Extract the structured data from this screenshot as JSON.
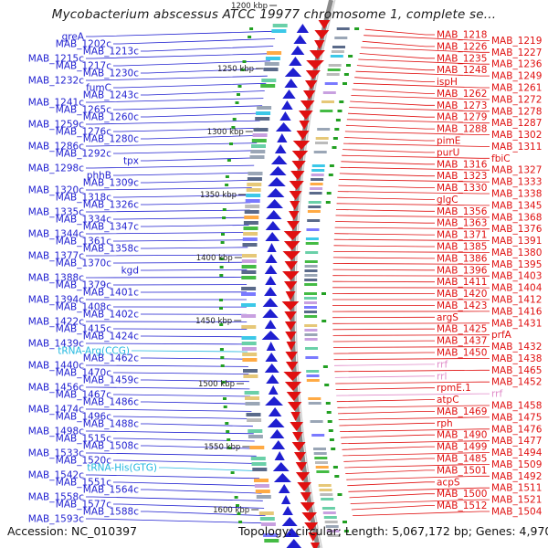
{
  "title": "Mycobacterium abscessus ATCC 19977 chromosome 1, complete se...",
  "footer": {
    "accession": "Accession: NC_010397",
    "summary": "Topology: circular; Length: 5,067,172 bp; Genes: 4,970"
  },
  "colors": {
    "reverse_strand": "#1f1fd0",
    "forward_strand": "#e01010",
    "rna": "#22b8e0",
    "pseudo": "#e08ac8",
    "backbone": "#8a8a8a",
    "cds_ring_green": "#22a022"
  },
  "scale_ticks": [
    "1200 kbp",
    "1250 kbp",
    "1300 kbp",
    "1350 kbp",
    "1400 kbp",
    "1450 kbp",
    "1500 kbp",
    "1550 kbp",
    "1600 kbp"
  ],
  "left_labels": [
    {
      "text": "greA",
      "kind": "reverse"
    },
    {
      "text": "MAB_1202c",
      "kind": "reverse"
    },
    {
      "text": "MAB_1213c",
      "kind": "reverse"
    },
    {
      "text": "MAB_1215c",
      "kind": "reverse"
    },
    {
      "text": "MAB_1217c",
      "kind": "reverse"
    },
    {
      "text": "MAB_1230c",
      "kind": "reverse"
    },
    {
      "text": "MAB_1232c",
      "kind": "reverse"
    },
    {
      "text": "fumC",
      "kind": "reverse"
    },
    {
      "text": "MAB_1243c",
      "kind": "reverse"
    },
    {
      "text": "MAB_1241c",
      "kind": "reverse"
    },
    {
      "text": "MAB_1265c",
      "kind": "reverse"
    },
    {
      "text": "MAB_1260c",
      "kind": "reverse"
    },
    {
      "text": "MAB_1259c",
      "kind": "reverse"
    },
    {
      "text": "MAB_1276c",
      "kind": "reverse"
    },
    {
      "text": "MAB_1280c",
      "kind": "reverse"
    },
    {
      "text": "MAB_1286c",
      "kind": "reverse"
    },
    {
      "text": "MAB_1292c",
      "kind": "reverse"
    },
    {
      "text": "tpx",
      "kind": "reverse"
    },
    {
      "text": "MAB_1298c",
      "kind": "reverse"
    },
    {
      "text": "phhB",
      "kind": "reverse"
    },
    {
      "text": "MAB_1309c",
      "kind": "reverse"
    },
    {
      "text": "MAB_1320c",
      "kind": "reverse"
    },
    {
      "text": "MAB_1318c",
      "kind": "reverse"
    },
    {
      "text": "MAB_1326c",
      "kind": "reverse"
    },
    {
      "text": "MAB_1335c",
      "kind": "reverse"
    },
    {
      "text": "MAB_1334c",
      "kind": "reverse"
    },
    {
      "text": "MAB_1347c",
      "kind": "reverse"
    },
    {
      "text": "MAB_1344c",
      "kind": "reverse"
    },
    {
      "text": "MAB_1361c",
      "kind": "reverse"
    },
    {
      "text": "MAB_1358c",
      "kind": "reverse"
    },
    {
      "text": "MAB_1377c",
      "kind": "reverse"
    },
    {
      "text": "MAB_1370c",
      "kind": "reverse"
    },
    {
      "text": "kgd",
      "kind": "reverse"
    },
    {
      "text": "MAB_1388c",
      "kind": "reverse"
    },
    {
      "text": "MAB_1379c",
      "kind": "reverse"
    },
    {
      "text": "MAB_1401c",
      "kind": "reverse"
    },
    {
      "text": "MAB_1394c",
      "kind": "reverse"
    },
    {
      "text": "MAB_1408c",
      "kind": "reverse"
    },
    {
      "text": "MAB_1402c",
      "kind": "reverse"
    },
    {
      "text": "MAB_1422c",
      "kind": "reverse"
    },
    {
      "text": "MAB_1415c",
      "kind": "reverse"
    },
    {
      "text": "MAB_1424c",
      "kind": "reverse"
    },
    {
      "text": "MAB_1439c",
      "kind": "reverse"
    },
    {
      "text": "tRNA-Arg(CCG)",
      "kind": "rna"
    },
    {
      "text": "MAB_1462c",
      "kind": "reverse"
    },
    {
      "text": "MAB_1440c",
      "kind": "reverse"
    },
    {
      "text": "MAB_1470c",
      "kind": "reverse"
    },
    {
      "text": "MAB_1459c",
      "kind": "reverse"
    },
    {
      "text": "MAB_1456c",
      "kind": "reverse"
    },
    {
      "text": "MAB_1467c",
      "kind": "reverse"
    },
    {
      "text": "MAB_1486c",
      "kind": "reverse"
    },
    {
      "text": "MAB_1474c",
      "kind": "reverse"
    },
    {
      "text": "MAB_1496c",
      "kind": "reverse"
    },
    {
      "text": "MAB_1488c",
      "kind": "reverse"
    },
    {
      "text": "MAB_1498c",
      "kind": "reverse"
    },
    {
      "text": "MAB_1515c",
      "kind": "reverse"
    },
    {
      "text": "MAB_1508c",
      "kind": "reverse"
    },
    {
      "text": "MAB_1533c",
      "kind": "reverse"
    },
    {
      "text": "MAB_1520c",
      "kind": "reverse"
    },
    {
      "text": "tRNA-His(GTG)",
      "kind": "rna"
    },
    {
      "text": "MAB_1542c",
      "kind": "reverse"
    },
    {
      "text": "MAB_1551c",
      "kind": "reverse"
    },
    {
      "text": "MAB_1564c",
      "kind": "reverse"
    },
    {
      "text": "MAB_1558c",
      "kind": "reverse"
    },
    {
      "text": "MAB_1577c",
      "kind": "reverse"
    },
    {
      "text": "MAB_1588c",
      "kind": "reverse"
    },
    {
      "text": "MAB_1593c",
      "kind": "reverse"
    }
  ],
  "right_labels": [
    {
      "text": "MAB_1218",
      "kind": "forward"
    },
    {
      "text": "MAB_1219",
      "kind": "forward"
    },
    {
      "text": "MAB_1226",
      "kind": "forward"
    },
    {
      "text": "MAB_1227",
      "kind": "forward"
    },
    {
      "text": "MAB_1235",
      "kind": "forward"
    },
    {
      "text": "MAB_1236",
      "kind": "forward"
    },
    {
      "text": "MAB_1248",
      "kind": "forward"
    },
    {
      "text": "MAB_1249",
      "kind": "forward"
    },
    {
      "text": "ispH",
      "kind": "forward"
    },
    {
      "text": "MAB_1261",
      "kind": "forward"
    },
    {
      "text": "MAB_1262",
      "kind": "forward"
    },
    {
      "text": "MAB_1272",
      "kind": "forward"
    },
    {
      "text": "MAB_1273",
      "kind": "forward"
    },
    {
      "text": "MAB_1278",
      "kind": "forward"
    },
    {
      "text": "MAB_1279",
      "kind": "forward"
    },
    {
      "text": "MAB_1287",
      "kind": "forward"
    },
    {
      "text": "MAB_1288",
      "kind": "forward"
    },
    {
      "text": "MAB_1302",
      "kind": "forward"
    },
    {
      "text": "pimE",
      "kind": "forward"
    },
    {
      "text": "MAB_1311",
      "kind": "forward"
    },
    {
      "text": "purU",
      "kind": "forward"
    },
    {
      "text": "fbiC",
      "kind": "forward"
    },
    {
      "text": "MAB_1316",
      "kind": "forward"
    },
    {
      "text": "MAB_1327",
      "kind": "forward"
    },
    {
      "text": "MAB_1323",
      "kind": "forward"
    },
    {
      "text": "MAB_1333",
      "kind": "forward"
    },
    {
      "text": "MAB_1330",
      "kind": "forward"
    },
    {
      "text": "MAB_1338",
      "kind": "forward"
    },
    {
      "text": "glgC",
      "kind": "forward"
    },
    {
      "text": "MAB_1345",
      "kind": "forward"
    },
    {
      "text": "MAB_1356",
      "kind": "forward"
    },
    {
      "text": "MAB_1368",
      "kind": "forward"
    },
    {
      "text": "MAB_1363",
      "kind": "forward"
    },
    {
      "text": "MAB_1376",
      "kind": "forward"
    },
    {
      "text": "MAB_1371",
      "kind": "forward"
    },
    {
      "text": "MAB_1391",
      "kind": "forward"
    },
    {
      "text": "MAB_1385",
      "kind": "forward"
    },
    {
      "text": "MAB_1380",
      "kind": "forward"
    },
    {
      "text": "MAB_1386",
      "kind": "forward"
    },
    {
      "text": "MAB_1395",
      "kind": "forward"
    },
    {
      "text": "MAB_1396",
      "kind": "forward"
    },
    {
      "text": "MAB_1403",
      "kind": "forward"
    },
    {
      "text": "MAB_1411",
      "kind": "forward"
    },
    {
      "text": "MAB_1404",
      "kind": "forward"
    },
    {
      "text": "MAB_1420",
      "kind": "forward"
    },
    {
      "text": "MAB_1412",
      "kind": "forward"
    },
    {
      "text": "MAB_1423",
      "kind": "forward"
    },
    {
      "text": "MAB_1416",
      "kind": "forward"
    },
    {
      "text": "argS",
      "kind": "forward"
    },
    {
      "text": "MAB_1431",
      "kind": "forward"
    },
    {
      "text": "MAB_1425",
      "kind": "forward"
    },
    {
      "text": "prfA",
      "kind": "forward"
    },
    {
      "text": "MAB_1437",
      "kind": "forward"
    },
    {
      "text": "MAB_1432",
      "kind": "forward"
    },
    {
      "text": "MAB_1450",
      "kind": "forward"
    },
    {
      "text": "MAB_1438",
      "kind": "forward"
    },
    {
      "text": "rrf",
      "kind": "pseudo"
    },
    {
      "text": "MAB_1465",
      "kind": "forward"
    },
    {
      "text": "rrl",
      "kind": "pseudo"
    },
    {
      "text": "MAB_1452",
      "kind": "forward"
    },
    {
      "text": "rpmE.1",
      "kind": "forward"
    },
    {
      "text": "rrf",
      "kind": "pseudo"
    },
    {
      "text": "atpC",
      "kind": "forward"
    },
    {
      "text": "MAB_1458",
      "kind": "forward"
    },
    {
      "text": "MAB_1469",
      "kind": "forward"
    },
    {
      "text": "MAB_1475",
      "kind": "forward"
    },
    {
      "text": "rph",
      "kind": "forward"
    },
    {
      "text": "MAB_1476",
      "kind": "forward"
    },
    {
      "text": "MAB_1490",
      "kind": "forward"
    },
    {
      "text": "MAB_1477",
      "kind": "forward"
    },
    {
      "text": "MAB_1499",
      "kind": "forward"
    },
    {
      "text": "MAB_1494",
      "kind": "forward"
    },
    {
      "text": "MAB_1485",
      "kind": "forward"
    },
    {
      "text": "MAB_1509",
      "kind": "forward"
    },
    {
      "text": "MAB_1501",
      "kind": "forward"
    },
    {
      "text": "MAB_1492",
      "kind": "forward"
    },
    {
      "text": "acpS",
      "kind": "forward"
    },
    {
      "text": "MAB_1511",
      "kind": "forward"
    },
    {
      "text": "MAB_1500",
      "kind": "forward"
    },
    {
      "text": "MAB_1521",
      "kind": "forward"
    },
    {
      "text": "MAB_1512",
      "kind": "forward"
    },
    {
      "text": "MAB_1504",
      "kind": "forward"
    }
  ]
}
